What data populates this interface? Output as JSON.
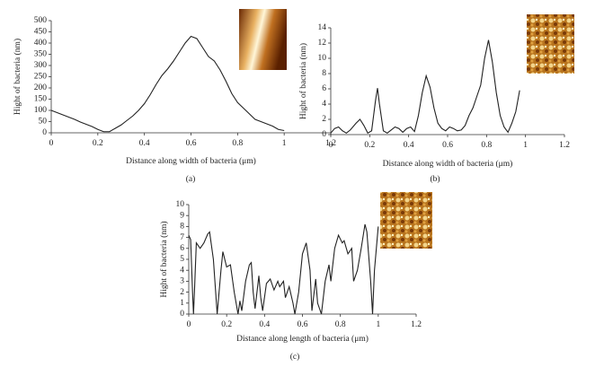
{
  "chart_data": [
    {
      "type": "line",
      "caption": "(a)",
      "x_label": "Distance along width of bacteria (μm)",
      "y_label": "Hight of bacteria (nm)",
      "color": "#222222",
      "xlim": [
        0,
        1.2
      ],
      "xticks": [
        0,
        0.2,
        0.4,
        0.6,
        0.8,
        1,
        1.2
      ],
      "ylim": [
        0,
        500
      ],
      "yticks": [
        0,
        50,
        100,
        150,
        200,
        250,
        300,
        350,
        400,
        450,
        500
      ],
      "x": [
        0,
        0.025,
        0.05,
        0.075,
        0.1,
        0.125,
        0.15,
        0.175,
        0.2,
        0.225,
        0.25,
        0.275,
        0.3,
        0.325,
        0.35,
        0.375,
        0.4,
        0.425,
        0.45,
        0.475,
        0.5,
        0.525,
        0.55,
        0.575,
        0.6,
        0.625,
        0.65,
        0.675,
        0.7,
        0.725,
        0.75,
        0.775,
        0.8,
        0.825,
        0.85,
        0.875,
        0.9,
        0.925,
        0.95,
        0.975,
        1.0
      ],
      "values": [
        100,
        90,
        80,
        70,
        60,
        48,
        38,
        28,
        15,
        5,
        5,
        20,
        35,
        55,
        75,
        100,
        130,
        170,
        215,
        255,
        285,
        320,
        360,
        400,
        430,
        420,
        380,
        340,
        320,
        280,
        230,
        175,
        135,
        110,
        85,
        60,
        50,
        40,
        30,
        15,
        10
      ]
    },
    {
      "type": "line",
      "caption": "(b)",
      "x_label": "Distance along width of bacteria (μm)",
      "y_label": "Hight of bacteria (nm)",
      "color": "#222222",
      "xlim": [
        0,
        1.2
      ],
      "xticks": [
        0,
        0.2,
        0.4,
        0.6,
        0.8,
        1,
        1.2
      ],
      "ylim": [
        0,
        14
      ],
      "yticks": [
        0,
        2,
        4,
        6,
        8,
        10,
        12,
        14
      ],
      "x": [
        0,
        0.02,
        0.04,
        0.06,
        0.08,
        0.1,
        0.13,
        0.15,
        0.17,
        0.19,
        0.21,
        0.23,
        0.24,
        0.25,
        0.27,
        0.29,
        0.31,
        0.33,
        0.35,
        0.37,
        0.39,
        0.41,
        0.43,
        0.45,
        0.47,
        0.49,
        0.51,
        0.53,
        0.55,
        0.57,
        0.59,
        0.61,
        0.63,
        0.65,
        0.67,
        0.69,
        0.71,
        0.73,
        0.75,
        0.77,
        0.79,
        0.81,
        0.83,
        0.85,
        0.87,
        0.89,
        0.91,
        0.93,
        0.95,
        0.97
      ],
      "values": [
        0.2,
        0.8,
        1,
        0.5,
        0.2,
        0.6,
        1.5,
        2,
        1.2,
        0.2,
        0.5,
        4.5,
        6.1,
        4,
        0.5,
        0.2,
        0.6,
        1,
        0.8,
        0.3,
        0.8,
        1,
        0.4,
        2.5,
        5.5,
        7.7,
        6.2,
        3.5,
        1.5,
        0.8,
        0.5,
        1,
        0.8,
        0.5,
        0.6,
        1.2,
        2.5,
        3.5,
        5,
        6.5,
        10,
        12.4,
        9.5,
        5.5,
        2.5,
        1,
        0.3,
        1.5,
        3,
        5.8
      ]
    },
    {
      "type": "line",
      "caption": "(c)",
      "x_label": "Distance along length of bacteria (μm)",
      "y_label": "Hight of bacteria (nm)",
      "color": "#222222",
      "xlim": [
        0,
        1.2
      ],
      "xticks": [
        0,
        0.2,
        0.4,
        0.6,
        0.8,
        1,
        1.2
      ],
      "ylim": [
        0,
        10
      ],
      "yticks": [
        0,
        1,
        2,
        3,
        4,
        5,
        6,
        7,
        8,
        9,
        10
      ],
      "x": [
        0,
        0.01,
        0.02,
        0.025,
        0.03,
        0.04,
        0.06,
        0.08,
        0.1,
        0.11,
        0.13,
        0.15,
        0.17,
        0.18,
        0.2,
        0.22,
        0.24,
        0.26,
        0.27,
        0.28,
        0.3,
        0.32,
        0.33,
        0.34,
        0.35,
        0.37,
        0.38,
        0.39,
        0.41,
        0.43,
        0.45,
        0.47,
        0.48,
        0.5,
        0.51,
        0.53,
        0.55,
        0.56,
        0.58,
        0.6,
        0.62,
        0.64,
        0.65,
        0.67,
        0.68,
        0.7,
        0.72,
        0.74,
        0.75,
        0.77,
        0.79,
        0.81,
        0.82,
        0.84,
        0.86,
        0.87,
        0.89,
        0.91,
        0.93,
        0.94,
        0.96,
        0.97,
        0.98,
        1.0
      ],
      "values": [
        7.2,
        6.8,
        2,
        0,
        2,
        6.5,
        6,
        6.5,
        7.3,
        7.5,
        5,
        0,
        4,
        5.7,
        4.3,
        4.5,
        2,
        0,
        1.2,
        0.3,
        3,
        4.5,
        4.7,
        2,
        0.5,
        3.5,
        1.5,
        0.3,
        2.8,
        3.2,
        2.2,
        3,
        2.5,
        3,
        1.5,
        2.5,
        1,
        0,
        2,
        5.5,
        6.5,
        4,
        0.3,
        3.2,
        1,
        0,
        3,
        4.5,
        3,
        6,
        7.2,
        6.5,
        6.7,
        5.5,
        6,
        3,
        4,
        6,
        8.2,
        7.5,
        3,
        0,
        4,
        8
      ]
    }
  ]
}
